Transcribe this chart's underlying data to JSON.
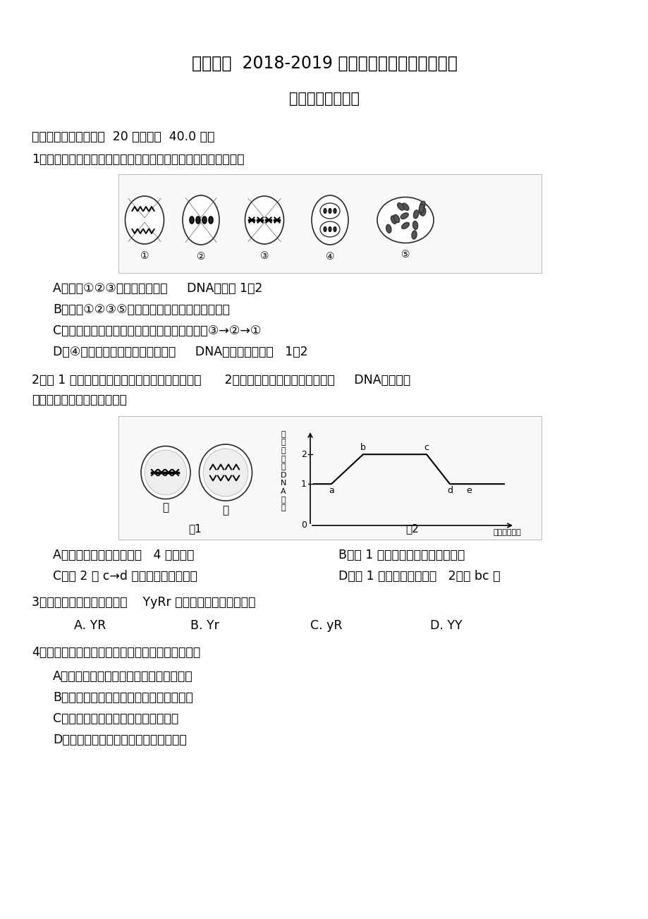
{
  "title1": "苏州五中  2018-2019 学年第一学期期中调研测试",
  "title2": "高二生物（选修）",
  "section1": "一、单选题（本大题共  20 小题，共  40.0 分）",
  "q1": "1、如图为某动物体内细胞分裂的一组图象，则有关叙述正确的是",
  "q1_A": "A．上述①②③细胞中染色体与     DNA比例为 1：2",
  "q1_B": "B．细胞①②③⑤产生的子细胞中均有同源染色体",
  "q1_C": "C．上图中表示有丝分裂的细胞及分裂的顺序是③→②→①",
  "q1_D": "D．④细胞分裂前，细胞中染色体与     DNA分子数目比例为   1：2",
  "q2_line1": "2、图 1 是某高等动物体内细胞分裂的示意图，图      2表示该动物细胞中每条染色体上     DNA含量变化",
  "q2_line2": "的曲线图，下列叙述错误的是",
  "q2_A": "A．该动物正常体细胞内有   4 条染色体",
  "q2_B": "B．图 1 中表示减数分裂的是细胞甲",
  "q2_C": "C．图 2 中 c→d 是因为着丝点的分裂",
  "q2_D": "D．图 1 中的细胞乙对应图   2中的 bc 段",
  "q3": "3、在正常情况下，基因型为    YyRr 的豌豆不能产生的配子是",
  "q3_A": "A. YR",
  "q3_B": "B. Yr",
  "q3_C": "C. yR",
  "q3_D": "D. YY",
  "q4": "4、下列关于同源染色体概念的叙述中，不正确的是",
  "q4_A": "A．一条染色体经复制后形成的两条染色体",
  "q4_B": "B．一条来自父方、一条来自母方的染色体",
  "q4_C": "C．在减数分裂中能联会的两条染色体",
  "q4_D": "D．形状和大小一般都相同的两条染色体",
  "fig1_label": "图1",
  "fig2_label": "图2",
  "jia": "甲",
  "yi": "乙",
  "bg_color": "#ffffff"
}
